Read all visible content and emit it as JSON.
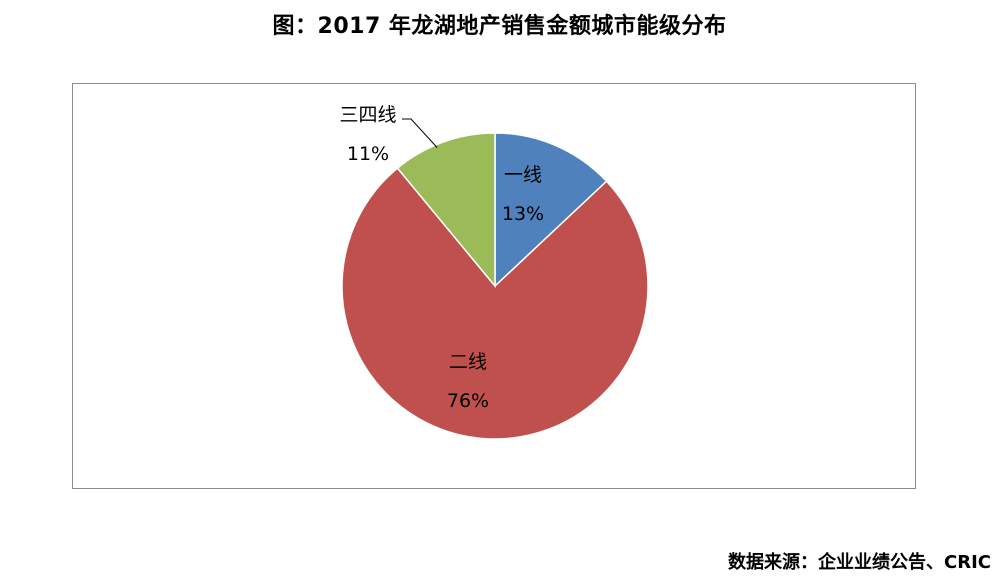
{
  "title": "图：2017 年龙湖地产销售金额城市能级分布",
  "source": "数据来源：企业业绩公告、CRIC",
  "chart_data": {
    "type": "pie",
    "title": "图：2017 年龙湖地产销售金额城市能级分布",
    "start_angle_deg": 0,
    "direction": "clockwise",
    "slices": [
      {
        "label": "一线",
        "value": 13,
        "value_label": "13%",
        "color": "#4F81BD"
      },
      {
        "label": "二线",
        "value": 76,
        "value_label": "76%",
        "color": "#C0504D"
      },
      {
        "label": "三四线",
        "value": 11,
        "value_label": "11%",
        "color": "#9BBB59"
      }
    ]
  }
}
